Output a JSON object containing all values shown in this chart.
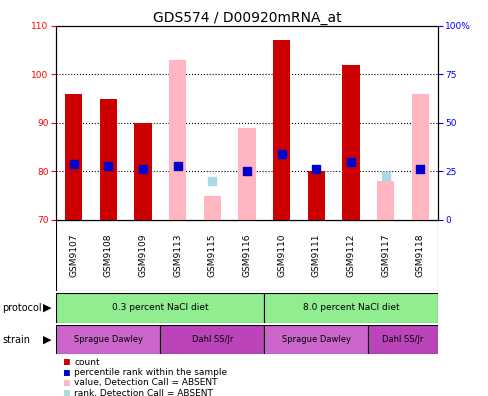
{
  "title": "GDS574 / D00920mRNA_at",
  "samples": [
    "GSM9107",
    "GSM9108",
    "GSM9109",
    "GSM9113",
    "GSM9115",
    "GSM9116",
    "GSM9110",
    "GSM9111",
    "GSM9112",
    "GSM9117",
    "GSM9118"
  ],
  "red_bars": [
    96,
    95,
    90,
    null,
    null,
    null,
    107,
    80,
    102,
    null,
    null
  ],
  "pink_bars": [
    null,
    null,
    null,
    103,
    75,
    89,
    null,
    null,
    null,
    78,
    96
  ],
  "blue_dots": [
    81.5,
    81,
    80.5,
    81,
    null,
    80,
    83.5,
    80.5,
    82,
    null,
    80.5
  ],
  "lightblue_dots": [
    null,
    null,
    null,
    null,
    78,
    null,
    null,
    null,
    null,
    79,
    null
  ],
  "ylim": [
    70,
    110
  ],
  "yticks_left": [
    70,
    80,
    90,
    100,
    110
  ],
  "red_color": "#CC0000",
  "pink_color": "#FFB6C1",
  "blue_color": "#0000CC",
  "lightblue_color": "#ADD8E6",
  "bar_width": 0.5,
  "dot_size": 30,
  "background_color": "#FFFFFF",
  "gray_bg": "#D3D3D3",
  "green_color": "#90EE90",
  "purple_color": "#CC66CC",
  "purple_dark": "#BB44BB",
  "title_fontsize": 10,
  "tick_fontsize": 6.5,
  "label_fontsize": 7.5
}
